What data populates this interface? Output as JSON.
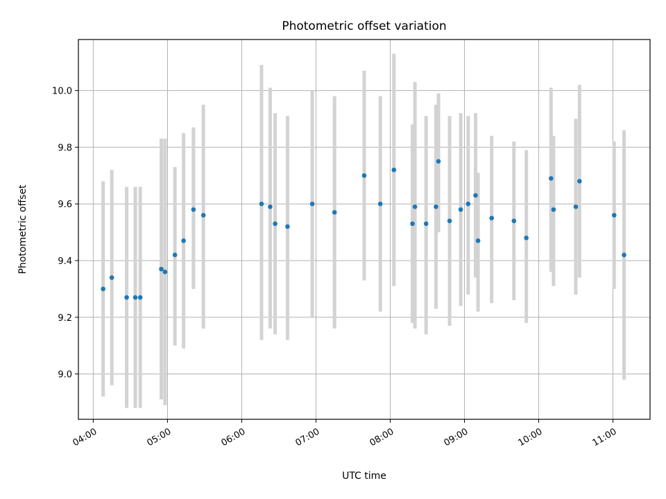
{
  "chart_data": {
    "type": "scatter",
    "title": "Photometric offset variation",
    "xlabel": "UTC time",
    "ylabel": "Photometric offset",
    "xlim": [
      "03:48",
      "11:30"
    ],
    "ylim": [
      8.84,
      10.18
    ],
    "x_ticks": [
      "04:00",
      "05:00",
      "06:00",
      "07:00",
      "08:00",
      "09:00",
      "10:00",
      "11:00"
    ],
    "y_ticks": [
      "9.0",
      "9.2",
      "9.4",
      "9.6",
      "9.8",
      "10.0"
    ],
    "grid": true,
    "colors": {
      "point": "#1f77b4",
      "error_bar": "#d3d3d3",
      "grid": "#b0b0b0"
    },
    "series": [
      {
        "points": [
          {
            "x": "04:08",
            "y": 9.3,
            "ymin": 8.92,
            "ymax": 9.68
          },
          {
            "x": "04:15",
            "y": 9.34,
            "ymin": 8.96,
            "ymax": 9.72
          },
          {
            "x": "04:27",
            "y": 9.27,
            "ymin": 8.88,
            "ymax": 9.66
          },
          {
            "x": "04:34",
            "y": 9.27,
            "ymin": 8.88,
            "ymax": 9.66
          },
          {
            "x": "04:38",
            "y": 9.27,
            "ymin": 8.88,
            "ymax": 9.66
          },
          {
            "x": "04:55",
            "y": 9.37,
            "ymin": 8.91,
            "ymax": 9.83
          },
          {
            "x": "04:58",
            "y": 9.36,
            "ymin": 8.89,
            "ymax": 9.83
          },
          {
            "x": "05:06",
            "y": 9.42,
            "ymin": 9.1,
            "ymax": 9.73
          },
          {
            "x": "05:13",
            "y": 9.47,
            "ymin": 9.09,
            "ymax": 9.85
          },
          {
            "x": "05:21",
            "y": 9.58,
            "ymin": 9.3,
            "ymax": 9.87
          },
          {
            "x": "05:29",
            "y": 9.56,
            "ymin": 9.16,
            "ymax": 9.95
          },
          {
            "x": "06:16",
            "y": 9.6,
            "ymin": 9.12,
            "ymax": 10.09
          },
          {
            "x": "06:23",
            "y": 9.59,
            "ymin": 9.16,
            "ymax": 10.01
          },
          {
            "x": "06:27",
            "y": 9.53,
            "ymin": 9.14,
            "ymax": 9.92
          },
          {
            "x": "06:37",
            "y": 9.52,
            "ymin": 9.12,
            "ymax": 9.91
          },
          {
            "x": "06:57",
            "y": 9.6,
            "ymin": 9.2,
            "ymax": 10.0
          },
          {
            "x": "07:15",
            "y": 9.57,
            "ymin": 9.16,
            "ymax": 9.98
          },
          {
            "x": "07:39",
            "y": 9.7,
            "ymin": 9.33,
            "ymax": 10.07
          },
          {
            "x": "07:52",
            "y": 9.6,
            "ymin": 9.22,
            "ymax": 9.98
          },
          {
            "x": "08:03",
            "y": 9.72,
            "ymin": 9.31,
            "ymax": 10.13
          },
          {
            "x": "08:18",
            "y": 9.53,
            "ymin": 9.18,
            "ymax": 9.88
          },
          {
            "x": "08:20",
            "y": 9.59,
            "ymin": 9.16,
            "ymax": 10.03
          },
          {
            "x": "08:29",
            "y": 9.53,
            "ymin": 9.14,
            "ymax": 9.91
          },
          {
            "x": "08:37",
            "y": 9.59,
            "ymin": 9.23,
            "ymax": 9.95
          },
          {
            "x": "08:39",
            "y": 9.75,
            "ymin": 9.5,
            "ymax": 9.99
          },
          {
            "x": "08:48",
            "y": 9.54,
            "ymin": 9.17,
            "ymax": 9.91
          },
          {
            "x": "08:57",
            "y": 9.58,
            "ymin": 9.24,
            "ymax": 9.92
          },
          {
            "x": "09:03",
            "y": 9.6,
            "ymin": 9.28,
            "ymax": 9.91
          },
          {
            "x": "09:09",
            "y": 9.63,
            "ymin": 9.34,
            "ymax": 9.92
          },
          {
            "x": "09:11",
            "y": 9.47,
            "ymin": 9.22,
            "ymax": 9.71
          },
          {
            "x": "09:22",
            "y": 9.55,
            "ymin": 9.25,
            "ymax": 9.84
          },
          {
            "x": "09:40",
            "y": 9.54,
            "ymin": 9.26,
            "ymax": 9.82
          },
          {
            "x": "09:50",
            "y": 9.48,
            "ymin": 9.18,
            "ymax": 9.79
          },
          {
            "x": "10:10",
            "y": 9.69,
            "ymin": 9.36,
            "ymax": 10.01
          },
          {
            "x": "10:12",
            "y": 9.58,
            "ymin": 9.31,
            "ymax": 9.84
          },
          {
            "x": "10:30",
            "y": 9.59,
            "ymin": 9.28,
            "ymax": 9.9
          },
          {
            "x": "10:33",
            "y": 9.68,
            "ymin": 9.34,
            "ymax": 10.02
          },
          {
            "x": "11:01",
            "y": 9.56,
            "ymin": 9.3,
            "ymax": 9.82
          },
          {
            "x": "11:09",
            "y": 9.42,
            "ymin": 8.98,
            "ymax": 9.86
          }
        ]
      }
    ]
  }
}
